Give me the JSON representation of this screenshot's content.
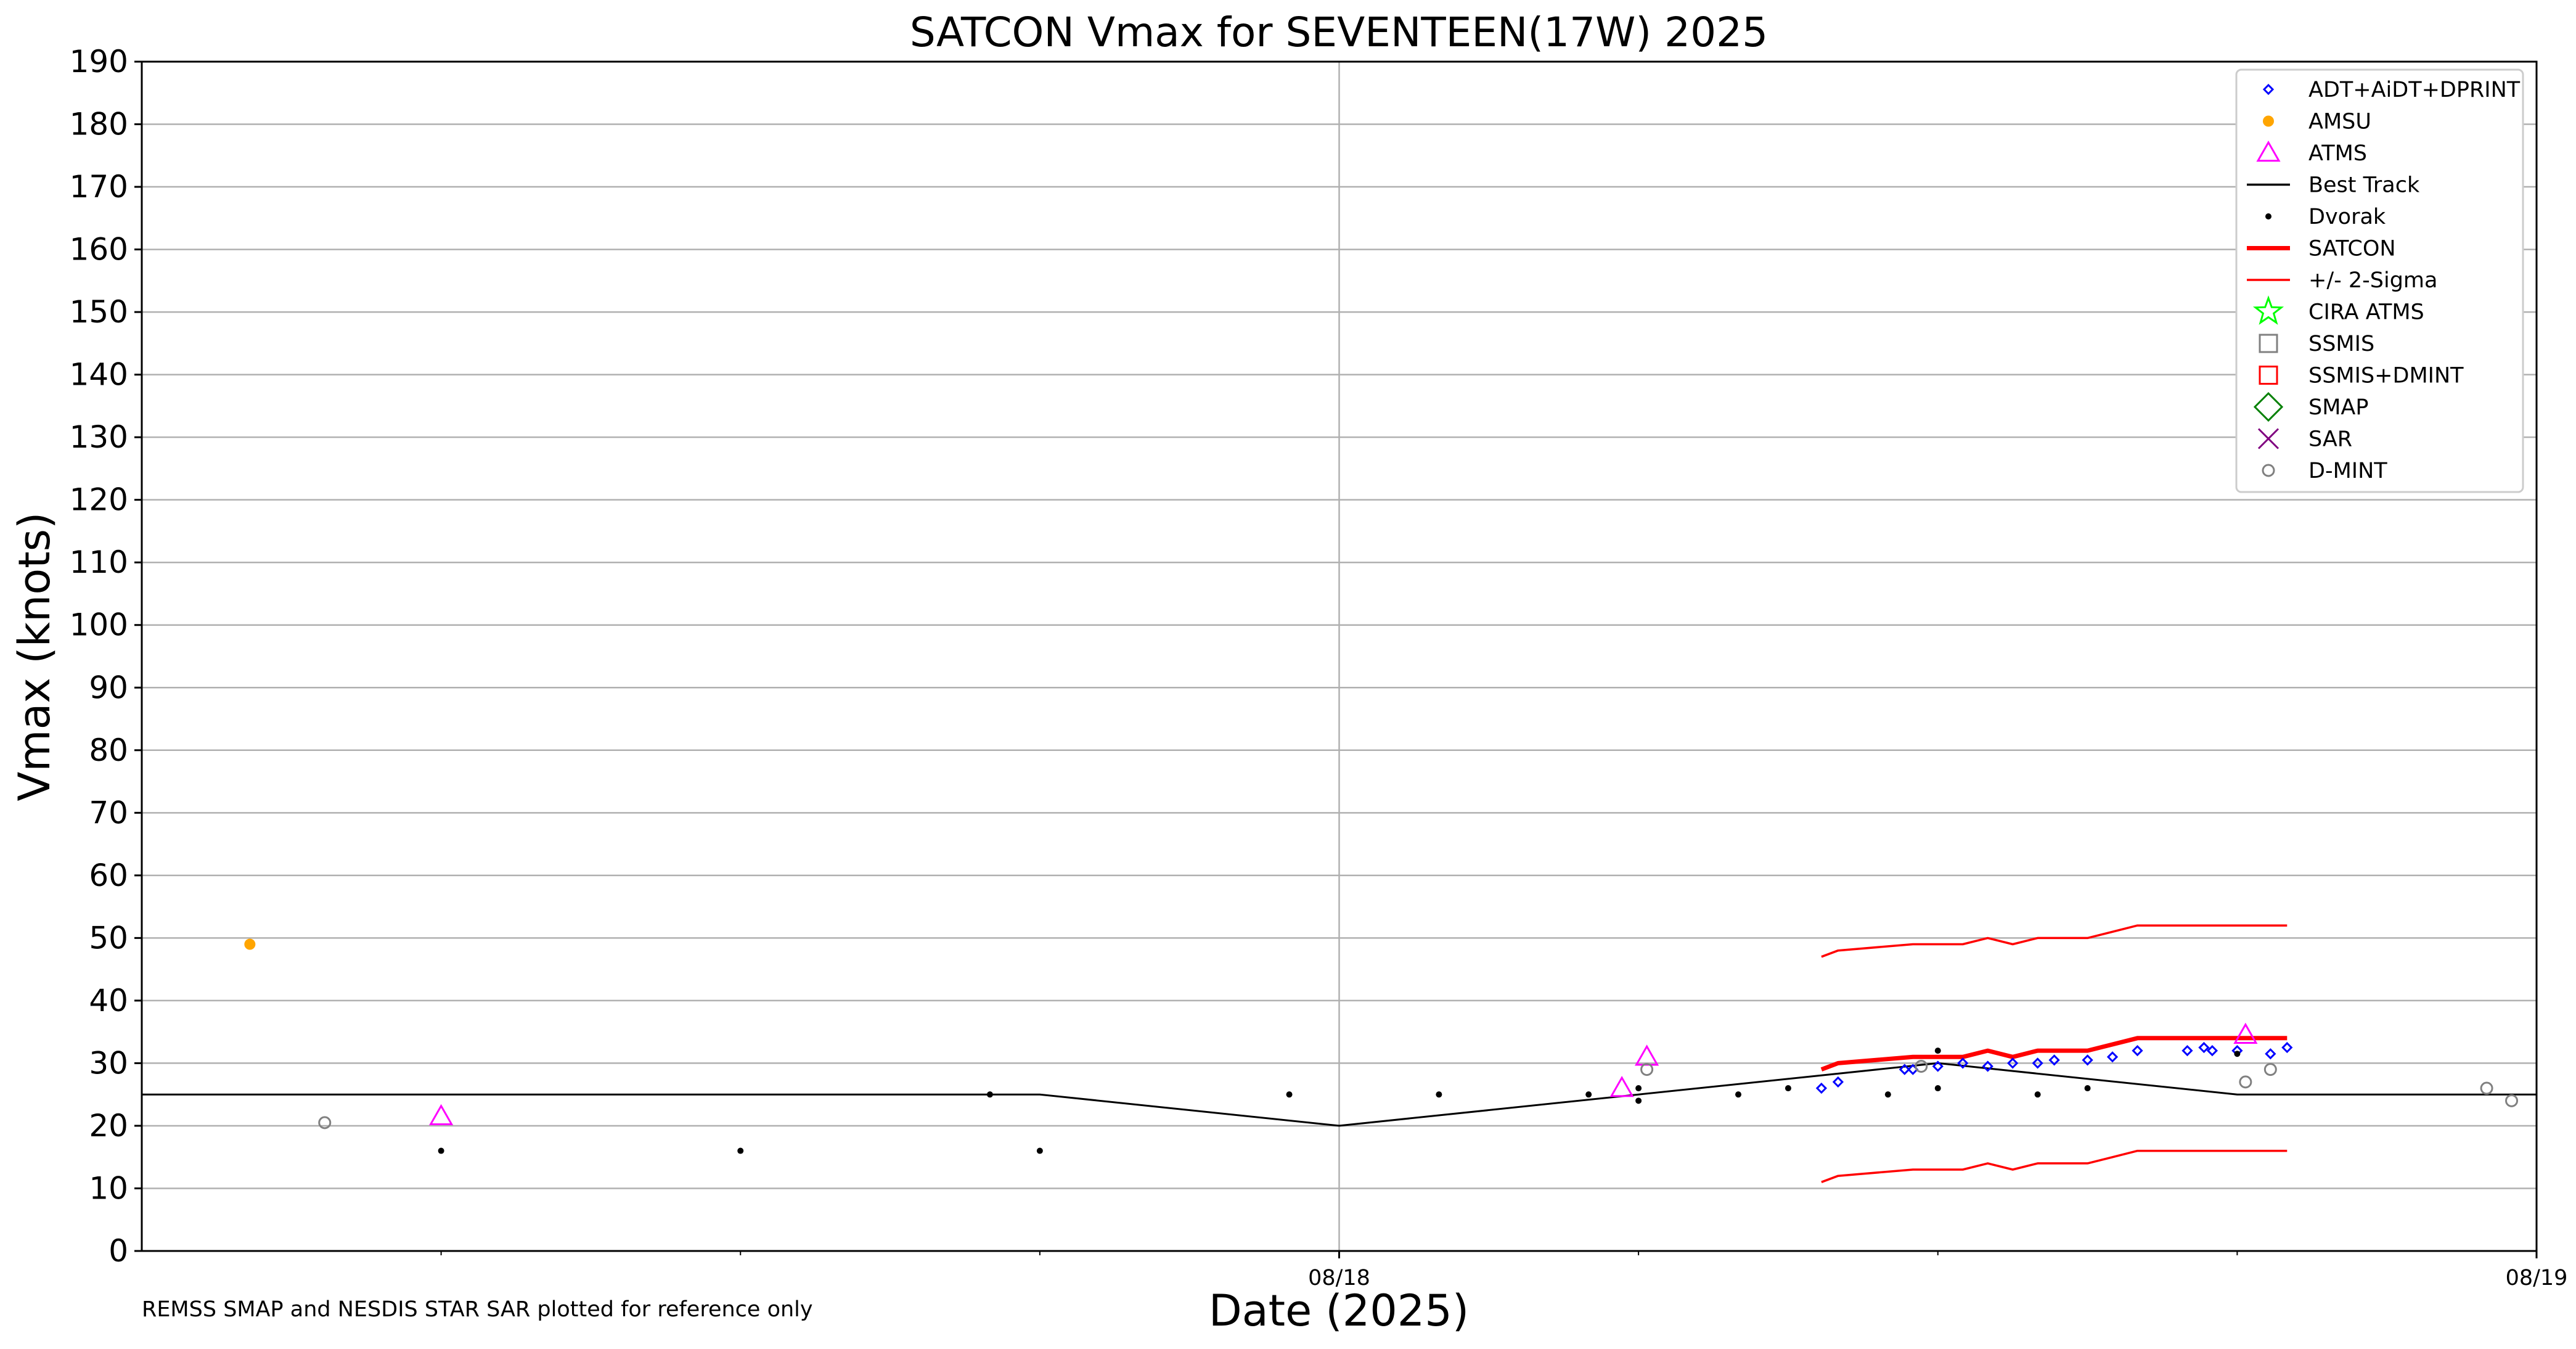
{
  "chart_data": {
    "type": "scatter",
    "title": "SATCON Vmax for SEVENTEEN(17W) 2025",
    "xlabel": "Date (2025)",
    "ylabel": "Vmax (knots)",
    "xlim": [
      "2025-08-17 00:00",
      "2025-08-19 00:00"
    ],
    "ylim": [
      0,
      190
    ],
    "yticks": [
      0,
      10,
      20,
      30,
      40,
      50,
      60,
      70,
      80,
      90,
      100,
      110,
      120,
      130,
      140,
      150,
      160,
      170,
      180,
      190
    ],
    "xtick_labels": [
      {
        "t": "2025-08-18 00:00",
        "label": "08/18"
      },
      {
        "t": "2025-08-19 00:00",
        "label": "08/19"
      }
    ],
    "minor_xticks": [
      "2025-08-17 06:00",
      "2025-08-17 12:00",
      "2025-08-17 18:00",
      "2025-08-18 06:00",
      "2025-08-18 12:00",
      "2025-08-18 18:00"
    ],
    "grid": true,
    "legend_position": "top-right",
    "footnote": "REMSS SMAP and NESDIS STAR SAR plotted for reference only",
    "series": [
      {
        "name": "ADT+AiDT+DPRINT",
        "kind": "diamond",
        "color": "#0000ff",
        "points": [
          [
            "2025-08-18 09:40",
            26
          ],
          [
            "2025-08-18 10:00",
            27
          ],
          [
            "2025-08-18 11:20",
            29
          ],
          [
            "2025-08-18 11:30",
            29
          ],
          [
            "2025-08-18 12:00",
            29.5
          ],
          [
            "2025-08-18 12:30",
            30
          ],
          [
            "2025-08-18 13:00",
            29.5
          ],
          [
            "2025-08-18 13:30",
            30
          ],
          [
            "2025-08-18 14:00",
            30
          ],
          [
            "2025-08-18 14:20",
            30.5
          ],
          [
            "2025-08-18 15:00",
            30.5
          ],
          [
            "2025-08-18 15:30",
            31
          ],
          [
            "2025-08-18 16:00",
            32
          ],
          [
            "2025-08-18 17:00",
            32
          ],
          [
            "2025-08-18 17:20",
            32.5
          ],
          [
            "2025-08-18 17:30",
            32
          ],
          [
            "2025-08-18 18:00",
            32
          ],
          [
            "2025-08-18 18:40",
            31.5
          ],
          [
            "2025-08-18 19:00",
            32.5
          ]
        ]
      },
      {
        "name": "AMSU",
        "kind": "dot",
        "color": "#ffa500",
        "points": [
          [
            "2025-08-17 02:10",
            49
          ]
        ]
      },
      {
        "name": "ATMS",
        "kind": "triangle",
        "color": "#ff00ff",
        "points": [
          [
            "2025-08-17 06:00",
            21.5
          ],
          [
            "2025-08-18 05:40",
            26
          ],
          [
            "2025-08-18 06:10",
            31
          ],
          [
            "2025-08-18 18:10",
            34.5
          ]
        ]
      },
      {
        "name": "Best Track",
        "kind": "line",
        "color": "#000000",
        "points": [
          [
            "2025-08-17 00:00",
            25
          ],
          [
            "2025-08-17 18:00",
            25
          ],
          [
            "2025-08-18 00:00",
            20
          ],
          [
            "2025-08-18 06:00",
            25
          ],
          [
            "2025-08-18 12:00",
            30
          ],
          [
            "2025-08-18 18:00",
            25
          ],
          [
            "2025-08-19 00:00",
            25
          ]
        ]
      },
      {
        "name": "Dvorak",
        "kind": "smalldot",
        "color": "#000000",
        "points": [
          [
            "2025-08-17 06:00",
            16
          ],
          [
            "2025-08-17 12:00",
            16
          ],
          [
            "2025-08-17 17:00",
            25
          ],
          [
            "2025-08-17 18:00",
            16
          ],
          [
            "2025-08-17 23:00",
            25
          ],
          [
            "2025-08-18 02:00",
            25
          ],
          [
            "2025-08-18 05:00",
            25
          ],
          [
            "2025-08-18 06:00",
            26
          ],
          [
            "2025-08-18 06:00",
            24
          ],
          [
            "2025-08-18 08:00",
            25
          ],
          [
            "2025-08-18 09:00",
            26
          ],
          [
            "2025-08-18 11:00",
            25
          ],
          [
            "2025-08-18 12:00",
            32
          ],
          [
            "2025-08-18 12:00",
            26
          ],
          [
            "2025-08-18 14:00",
            25
          ],
          [
            "2025-08-18 15:00",
            26
          ],
          [
            "2025-08-18 18:00",
            31.5
          ]
        ]
      },
      {
        "name": "SATCON",
        "kind": "thickline",
        "color": "#ff0000",
        "points": [
          [
            "2025-08-18 09:40",
            29
          ],
          [
            "2025-08-18 10:00",
            30
          ],
          [
            "2025-08-18 11:30",
            31
          ],
          [
            "2025-08-18 12:00",
            31
          ],
          [
            "2025-08-18 12:30",
            31
          ],
          [
            "2025-08-18 13:00",
            32
          ],
          [
            "2025-08-18 13:30",
            31
          ],
          [
            "2025-08-18 14:00",
            32
          ],
          [
            "2025-08-18 15:00",
            32
          ],
          [
            "2025-08-18 16:00",
            34
          ],
          [
            "2025-08-18 17:00",
            34
          ],
          [
            "2025-08-18 18:00",
            34
          ],
          [
            "2025-08-18 19:00",
            34
          ]
        ]
      },
      {
        "name": "+/- 2-Sigma",
        "kind": "thinline",
        "color": "#ff0000",
        "points": [
          [
            "2025-08-18 09:40",
            47
          ],
          [
            "2025-08-18 10:00",
            48
          ],
          [
            "2025-08-18 11:30",
            49
          ],
          [
            "2025-08-18 12:00",
            49
          ],
          [
            "2025-08-18 12:30",
            49
          ],
          [
            "2025-08-18 13:00",
            50
          ],
          [
            "2025-08-18 13:30",
            49
          ],
          [
            "2025-08-18 14:00",
            50
          ],
          [
            "2025-08-18 15:00",
            50
          ],
          [
            "2025-08-18 16:00",
            52
          ],
          [
            "2025-08-18 17:00",
            52
          ],
          [
            "2025-08-18 18:00",
            52
          ],
          [
            "2025-08-18 19:00",
            52
          ]
        ],
        "points_lower": [
          [
            "2025-08-18 09:40",
            11
          ],
          [
            "2025-08-18 10:00",
            12
          ],
          [
            "2025-08-18 11:30",
            13
          ],
          [
            "2025-08-18 12:00",
            13
          ],
          [
            "2025-08-18 12:30",
            13
          ],
          [
            "2025-08-18 13:00",
            14
          ],
          [
            "2025-08-18 13:30",
            13
          ],
          [
            "2025-08-18 14:00",
            14
          ],
          [
            "2025-08-18 15:00",
            14
          ],
          [
            "2025-08-18 16:00",
            16
          ],
          [
            "2025-08-18 17:00",
            16
          ],
          [
            "2025-08-18 18:00",
            16
          ],
          [
            "2025-08-18 19:00",
            16
          ]
        ]
      },
      {
        "name": "CIRA ATMS",
        "kind": "star",
        "color": "#00ff00",
        "points": []
      },
      {
        "name": "SSMIS",
        "kind": "square",
        "color": "#808080",
        "points": []
      },
      {
        "name": "SSMIS+DMINT",
        "kind": "square",
        "color": "#ff0000",
        "points": []
      },
      {
        "name": "SMAP",
        "kind": "bigdiamond",
        "color": "#008000",
        "points": []
      },
      {
        "name": "SAR",
        "kind": "x",
        "color": "#800080",
        "points": []
      },
      {
        "name": "D-MINT",
        "kind": "circle",
        "color": "#808080",
        "points": [
          [
            "2025-08-17 03:40",
            20.5
          ],
          [
            "2025-08-18 06:10",
            29
          ],
          [
            "2025-08-18 11:40",
            29.5
          ],
          [
            "2025-08-18 18:10",
            27
          ],
          [
            "2025-08-18 18:40",
            29
          ],
          [
            "2025-08-18 23:00",
            26
          ],
          [
            "2025-08-18 23:30",
            24
          ]
        ]
      }
    ]
  }
}
